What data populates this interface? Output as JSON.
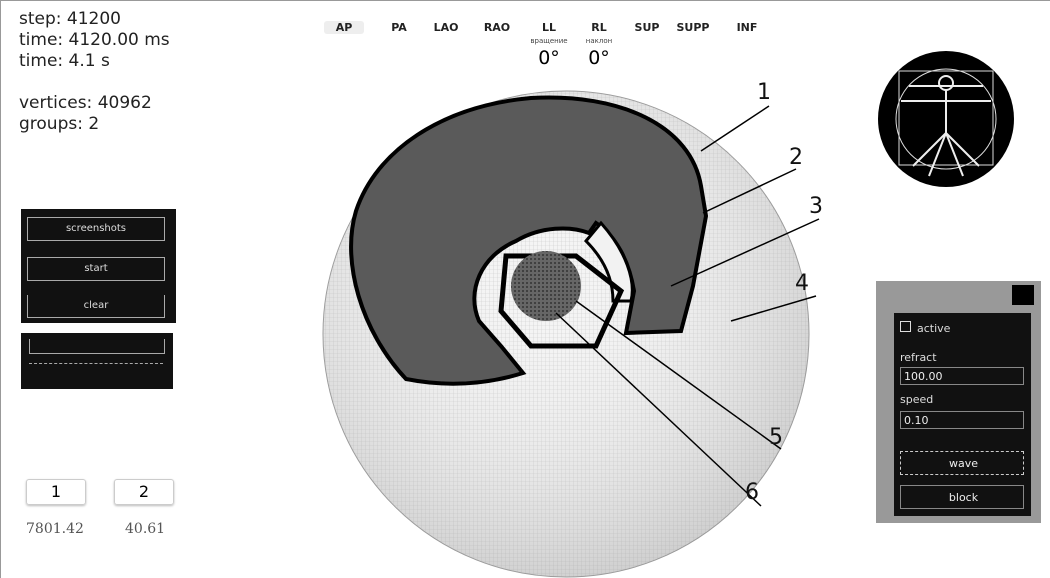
{
  "stats": [
    "step: 41200",
    "time: 4120.00 ms",
    "time: 4.1 s",
    "vertices: 40962",
    "groups: 2"
  ],
  "controls": {
    "buttons": [
      "screenshots",
      "start",
      "clear"
    ]
  },
  "view_tabs": [
    "AP",
    "PA",
    "LAO",
    "RAO",
    "LL",
    "RL",
    "SUP",
    "SUPP",
    "INF"
  ],
  "rotation": {
    "labels": [
      "вращение",
      "наклон"
    ],
    "values": [
      "0°",
      "0°"
    ]
  },
  "callouts": [
    "1",
    "2",
    "3",
    "4",
    "5",
    "6"
  ],
  "groups": {
    "buttons": [
      "1",
      "2"
    ],
    "values": [
      "7801.42",
      "40.61"
    ]
  },
  "wave_panel": {
    "active": "active",
    "refract_label": "refract",
    "refract": "100.00",
    "speed_label": "speed",
    "speed": "0.10",
    "wave": "wave",
    "block": "block"
  }
}
